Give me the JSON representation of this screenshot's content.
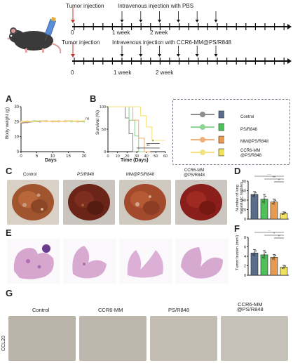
{
  "timelines": [
    {
      "start_label": "Tumor injection",
      "iv_label": "Intravenous injection with PBS",
      "ticks": [
        "0",
        "1 week",
        "2 week"
      ]
    },
    {
      "start_label": "Tumor injection",
      "iv_label": "Intravenous injection with CCR6-MM@PS/R848",
      "ticks": [
        "0",
        "1 week",
        "2 week"
      ]
    }
  ],
  "panels": {
    "A": "A",
    "B": "B",
    "C": "C",
    "D": "D",
    "E": "E",
    "F": "F",
    "G": "G"
  },
  "panel_a": {
    "xlabel": "Days",
    "ylabel": "Body weight (g)",
    "xticks": [
      "0",
      "5",
      "10",
      "15",
      "20"
    ],
    "yticks": [
      "0",
      "10",
      "20",
      "30"
    ],
    "sig": "ns"
  },
  "panel_b": {
    "xlabel": "Time (Days)",
    "ylabel": "Survival (%)",
    "xticks": [
      "0",
      "10",
      "20",
      "30",
      "40",
      "50",
      "60"
    ],
    "yticks": [
      "0",
      "50",
      "100"
    ],
    "sig1": "*",
    "sig2": "**"
  },
  "legend": [
    {
      "label": "Control",
      "color": "#8e8e8e",
      "bar": "#5a6d8b"
    },
    {
      "label": "PS/R848",
      "color": "#8fd694",
      "bar": "#4fbf5a"
    },
    {
      "label": "MM@PS/R848",
      "color": "#f0b07a",
      "bar": "#e79a52"
    },
    {
      "label": "CCR6-MM\n@PS/R848",
      "color": "#f4e27f",
      "bar": "#f0e25a"
    }
  ],
  "photo_labels": [
    "Control",
    "PS/R848",
    "MM@PS/R848",
    "CCR6-MM\n@PS/R848"
  ],
  "panel_d": {
    "ylabel": "Number of lung metastatic nodules",
    "yticks": [
      "0",
      "20",
      "40",
      "60",
      "80"
    ],
    "sig": [
      "***",
      "**",
      "*"
    ]
  },
  "panel_f": {
    "ylabel": "Tumor burden (mm²)",
    "yticks": [
      "0",
      "2",
      "4",
      "6",
      "8"
    ],
    "sig": [
      "**",
      "*",
      "*"
    ]
  },
  "g_labels": [
    "Control",
    "CCR6-MM",
    "PS/R848",
    "CCR6-MM\n@PS/R848"
  ],
  "g_row_label": "CCL20",
  "colors": {
    "control": "#5a6d8b",
    "ps": "#4fbf5a",
    "mm": "#e79a52",
    "ccr6": "#f0e25a",
    "axis": "#222222",
    "tick_red": "#c0392b"
  },
  "chart_data": [
    {
      "type": "line",
      "title": "",
      "xlabel": "Days",
      "ylabel": "Body weight (g)",
      "x": [
        0,
        2,
        4,
        6,
        8,
        10,
        12,
        14,
        16,
        18,
        20
      ],
      "series": [
        {
          "name": "Control",
          "values": [
            19,
            19.5,
            20,
            20,
            20.5,
            20,
            20.5,
            20,
            20.5,
            20,
            20
          ]
        },
        {
          "name": "PS/R848",
          "values": [
            20,
            20,
            20.5,
            20.5,
            20,
            20.5,
            20,
            20.5,
            20,
            20.5,
            20
          ]
        },
        {
          "name": "MM@PS/R848",
          "values": [
            19.5,
            20,
            20,
            20.5,
            20.5,
            20,
            20,
            20.5,
            20.5,
            20,
            20.5
          ]
        },
        {
          "name": "CCR6-MM@PS/R848",
          "values": [
            20,
            20.5,
            20,
            20.5,
            20,
            20.5,
            20.5,
            20,
            20.5,
            20.5,
            20.5
          ]
        }
      ],
      "xlim": [
        0,
        20
      ],
      "ylim": [
        0,
        30
      ]
    },
    {
      "type": "line",
      "title": "",
      "xlabel": "Time (Days)",
      "ylabel": "Survival (%)",
      "series": [
        {
          "name": "Control",
          "x": [
            0,
            18,
            18,
            22,
            22,
            26,
            26,
            30
          ],
          "values": [
            100,
            100,
            75,
            75,
            40,
            40,
            0,
            0
          ]
        },
        {
          "name": "PS/R848",
          "x": [
            0,
            22,
            22,
            28,
            28,
            32,
            32,
            40
          ],
          "values": [
            100,
            100,
            70,
            70,
            35,
            35,
            0,
            0
          ]
        },
        {
          "name": "MM@PS/R848",
          "x": [
            0,
            26,
            26,
            32,
            32,
            38,
            38,
            44
          ],
          "values": [
            100,
            100,
            70,
            70,
            30,
            30,
            0,
            0
          ]
        },
        {
          "name": "CCR6-MM@PS/R848",
          "x": [
            0,
            34,
            34,
            40,
            40,
            46,
            46,
            60
          ],
          "values": [
            100,
            100,
            80,
            80,
            55,
            55,
            25,
            25
          ]
        }
      ],
      "xlim": [
        0,
        60
      ],
      "ylim": [
        0,
        100
      ]
    },
    {
      "type": "bar",
      "title": "",
      "ylabel": "Number of lung metastatic nodules",
      "categories": [
        "Control",
        "PS/R848",
        "MM@PS/R848",
        "CCR6-MM@PS/R848"
      ],
      "values": [
        52,
        42,
        36,
        12
      ],
      "errors": [
        6,
        10,
        6,
        3
      ],
      "ylim": [
        0,
        80
      ]
    },
    {
      "type": "bar",
      "title": "",
      "ylabel": "Tumor burden (mm²)",
      "categories": [
        "Control",
        "PS/R848",
        "MM@PS/R848",
        "CCR6-MM@PS/R848"
      ],
      "values": [
        4.7,
        4.3,
        3.8,
        1.7
      ],
      "errors": [
        0.7,
        0.9,
        0.6,
        0.4
      ],
      "ylim": [
        0,
        8
      ]
    }
  ]
}
